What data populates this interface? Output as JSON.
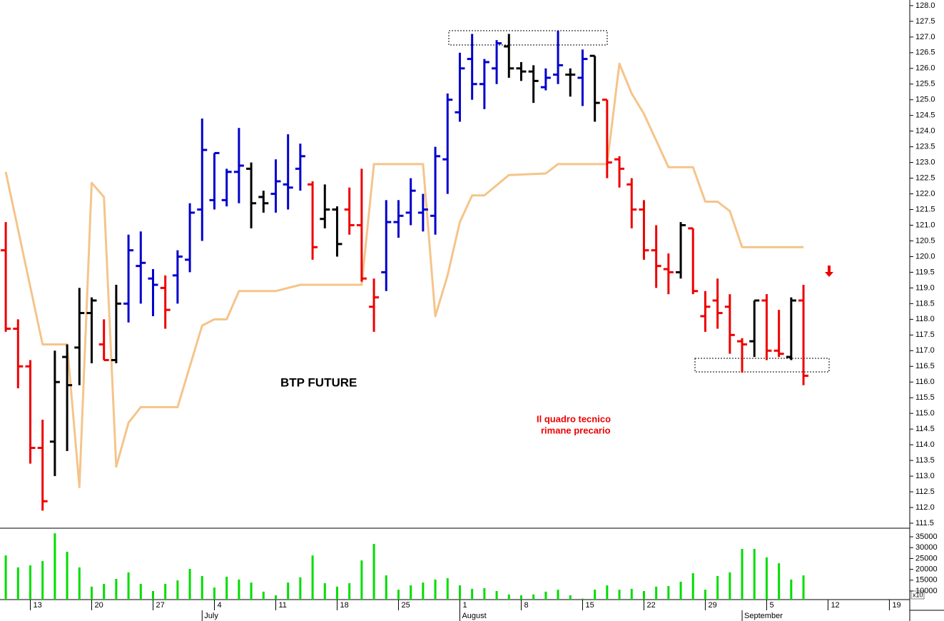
{
  "chart_data": [
    {
      "type": "ohlc",
      "title": "BTP FUTURE",
      "annotation": [
        "Il quadro tecnico",
        "rimane precario"
      ],
      "xlim": [
        -0.47,
        73.66
      ],
      "ylim": [
        111.34,
        128.18
      ],
      "yticks": [
        111.5,
        {
          "value": 112,
          "label": "112.0"
        },
        112.5,
        {
          "value": 113,
          "label": "113.0"
        },
        113.5,
        {
          "value": 114,
          "label": "114.0"
        },
        114.5,
        {
          "value": 115,
          "label": "115.0"
        },
        115.5,
        {
          "value": 116,
          "label": "116.0"
        },
        116.5,
        {
          "value": 117,
          "label": "117.0"
        },
        117.5,
        {
          "value": 118,
          "label": "118.0"
        },
        118.5,
        {
          "value": 119,
          "label": "119.0"
        },
        119.5,
        {
          "value": 120,
          "label": "120.0"
        },
        120.5,
        {
          "value": 121,
          "label": "121.0"
        },
        121.5,
        {
          "value": 122,
          "label": "122.0"
        },
        122.5,
        {
          "value": 123,
          "label": "123.0"
        },
        123.5,
        {
          "value": 124,
          "label": "124.0"
        },
        124.5,
        {
          "value": 125,
          "label": "125.0"
        },
        125.5,
        {
          "value": 126,
          "label": "126.0"
        },
        126.5,
        {
          "value": 127,
          "label": "127.0"
        },
        127.5,
        {
          "value": 128,
          "label": "128.0"
        }
      ],
      "x": [
        0,
        1,
        2,
        3,
        4,
        5,
        6,
        7,
        8,
        9,
        10,
        11,
        12,
        13,
        14,
        15,
        16,
        17,
        18,
        19,
        20,
        21,
        22,
        23,
        24,
        25,
        26,
        27,
        28,
        29,
        30,
        31,
        32,
        33,
        34,
        35,
        36,
        37,
        38,
        39,
        40,
        41,
        42,
        43,
        44,
        45,
        46,
        47,
        48,
        49,
        50,
        51,
        52,
        53,
        54,
        55,
        56,
        57,
        58,
        59,
        60,
        61,
        62,
        63,
        64,
        65
      ],
      "open": [
        120.2,
        117.7,
        116.5,
        113.9,
        114.1,
        116.8,
        117.1,
        118.2,
        117.2,
        116.7,
        118.5,
        119.7,
        119.3,
        119.0,
        119.4,
        119.9,
        121.5,
        121.8,
        121.8,
        122.7,
        122.8,
        121.9,
        122.0,
        122.3,
        122.8,
        122.3,
        121.2,
        121.5,
        121.5,
        121.0,
        118.4,
        119.5,
        121.1,
        121.4,
        121.4,
        121.3,
        123.1,
        124.6,
        126.3,
        125.5,
        126.0,
        126.7,
        126.0,
        125.9,
        125.4,
        125.8,
        125.8,
        125.7,
        126.4,
        125.0,
        123.1,
        122.3,
        121.5,
        120.2,
        119.6,
        119.5,
        120.9,
        118.1,
        118.6,
        118.4,
        117.3,
        117.3,
        118.6,
        117.0,
        116.8,
        118.6
      ],
      "high": [
        121.1,
        118.0,
        116.7,
        114.8,
        117.0,
        117.2,
        119.0,
        118.7,
        118.0,
        119.1,
        120.7,
        120.8,
        119.6,
        119.4,
        120.2,
        121.7,
        124.4,
        123.3,
        122.8,
        124.1,
        123.0,
        122.1,
        123.1,
        123.9,
        123.6,
        122.4,
        122.3,
        121.6,
        122.2,
        122.8,
        119.3,
        121.8,
        121.8,
        122.5,
        122.0,
        123.5,
        125.2,
        126.5,
        127.1,
        126.3,
        126.9,
        127.1,
        126.2,
        126.1,
        126.0,
        127.2,
        126.0,
        126.6,
        126.4,
        125.0,
        123.2,
        122.5,
        121.8,
        121.0,
        120.1,
        121.1,
        120.9,
        118.9,
        119.3,
        118.8,
        117.4,
        118.6,
        118.8,
        118.3,
        118.7,
        119.1
      ],
      "low": [
        117.6,
        115.8,
        113.4,
        111.9,
        113.0,
        113.8,
        115.9,
        116.6,
        116.7,
        116.6,
        117.9,
        118.5,
        118.1,
        117.7,
        118.5,
        119.5,
        120.5,
        121.5,
        121.6,
        121.7,
        120.9,
        121.4,
        121.4,
        121.5,
        122.1,
        119.9,
        120.9,
        120.0,
        120.7,
        119.2,
        117.6,
        118.9,
        120.6,
        121.0,
        120.8,
        120.7,
        122.0,
        124.3,
        125.0,
        124.7,
        125.5,
        125.7,
        125.6,
        124.9,
        125.3,
        125.5,
        125.1,
        124.8,
        124.3,
        122.5,
        122.2,
        120.9,
        119.9,
        119.0,
        118.8,
        119.3,
        118.8,
        117.6,
        117.7,
        116.9,
        116.3,
        116.8,
        116.7,
        116.8,
        116.7,
        115.9
      ],
      "close": [
        117.7,
        116.5,
        113.9,
        112.2,
        116.0,
        115.9,
        118.2,
        118.6,
        116.7,
        118.5,
        120.2,
        119.8,
        119.1,
        118.3,
        120.0,
        121.4,
        123.4,
        123.3,
        122.7,
        122.9,
        121.7,
        121.7,
        122.4,
        122.2,
        123.2,
        120.3,
        121.5,
        120.4,
        121.0,
        119.3,
        118.7,
        121.1,
        121.3,
        122.1,
        121.5,
        123.2,
        125.0,
        126.0,
        125.5,
        126.2,
        126.8,
        126.0,
        125.9,
        125.6,
        125.7,
        126.1,
        125.8,
        126.3,
        124.9,
        123.0,
        122.8,
        121.5,
        120.2,
        119.7,
        119.5,
        121.0,
        118.9,
        118.4,
        118.2,
        117.5,
        117.2,
        118.6,
        117.0,
        116.9,
        118.6,
        116.2
      ],
      "colors": [
        "#ee0000",
        "#ee0000",
        "#ee0000",
        "#ee0000",
        "#000000",
        "#000000",
        "#000000",
        "#000000",
        "#ee0000",
        "#000000",
        "#0000cc",
        "#0000cc",
        "#0000cc",
        "#ee0000",
        "#0000cc",
        "#0000cc",
        "#0000cc",
        "#0000cc",
        "#0000cc",
        "#0000cc",
        "#000000",
        "#000000",
        "#0000cc",
        "#0000cc",
        "#0000cc",
        "#ee0000",
        "#000000",
        "#000000",
        "#ee0000",
        "#ee0000",
        "#ee0000",
        "#0000cc",
        "#0000cc",
        "#0000cc",
        "#0000cc",
        "#0000cc",
        "#0000cc",
        "#0000cc",
        "#0000cc",
        "#0000cc",
        "#0000cc",
        "#000000",
        "#000000",
        "#000000",
        "#0000cc",
        "#0000cc",
        "#000000",
        "#0000cc",
        "#000000",
        "#ee0000",
        "#ee0000",
        "#ee0000",
        "#ee0000",
        "#ee0000",
        "#ee0000",
        "#000000",
        "#ee0000",
        "#ee0000",
        "#ee0000",
        "#ee0000",
        "#ee0000",
        "#000000",
        "#ee0000",
        "#ee0000",
        "#000000",
        "#ee0000"
      ],
      "line": {
        "color": "#f5c48a",
        "x": [
          0,
          3,
          5,
          6,
          7,
          8,
          9,
          10,
          11,
          14,
          16,
          17,
          18,
          19,
          22,
          24,
          29,
          30,
          34,
          35,
          36,
          37,
          38,
          39,
          41,
          44,
          45,
          49,
          50,
          51,
          52,
          54,
          56,
          57,
          58,
          59,
          60,
          65
        ],
        "values": [
          122.7,
          117.2,
          117.2,
          112.65,
          122.35,
          121.9,
          113.3,
          114.7,
          115.2,
          115.2,
          117.8,
          118.0,
          118.0,
          118.9,
          118.9,
          119.1,
          119.1,
          122.95,
          122.95,
          118.1,
          119.4,
          121.1,
          121.95,
          121.95,
          122.6,
          122.65,
          122.95,
          122.95,
          126.15,
          125.2,
          124.55,
          122.85,
          122.85,
          121.75,
          121.75,
          121.45,
          120.3,
          120.3
        ]
      }
    },
    {
      "type": "bar",
      "color": "#00dd00",
      "unit_label": "x10",
      "xlim": [
        -0.47,
        73.66
      ],
      "ylim": [
        6050,
        38620
      ],
      "yticks": [
        10000,
        15000,
        20000,
        25000,
        30000,
        35000
      ],
      "x": [
        0,
        1,
        2,
        3,
        4,
        5,
        6,
        7,
        8,
        9,
        10,
        11,
        12,
        13,
        14,
        15,
        16,
        17,
        18,
        19,
        20,
        21,
        22,
        23,
        24,
        25,
        26,
        27,
        28,
        29,
        30,
        31,
        32,
        33,
        34,
        35,
        36,
        37,
        38,
        39,
        40,
        41,
        42,
        43,
        44,
        45,
        46,
        47,
        48,
        49,
        50,
        51,
        52,
        53,
        54,
        55,
        56,
        57,
        58,
        59,
        60,
        61,
        62,
        63,
        64,
        65
      ],
      "values": [
        26400,
        20900,
        21800,
        23800,
        36600,
        28100,
        20900,
        12000,
        13300,
        15600,
        18600,
        13300,
        10000,
        13300,
        14900,
        20200,
        16900,
        11600,
        16600,
        15300,
        13900,
        9700,
        8000,
        13900,
        16300,
        26400,
        13600,
        12000,
        13600,
        24100,
        31700,
        17200,
        10600,
        12600,
        13900,
        15300,
        15900,
        12600,
        11000,
        11300,
        10000,
        8400,
        8000,
        8400,
        9700,
        10600,
        8000,
        6500,
        10600,
        12600,
        10600,
        11000,
        10000,
        12000,
        12300,
        14300,
        18200,
        10600,
        16900,
        18600,
        29400,
        29400,
        25500,
        22800,
        15300,
        17200
      ],
      "xticks": [
        {
          "value": 2,
          "label": "13"
        },
        {
          "value": 7,
          "label": "20"
        },
        {
          "value": 12,
          "label": "27"
        },
        {
          "value": 17,
          "label": "4"
        },
        {
          "value": 22,
          "label": "11"
        },
        {
          "value": 27,
          "label": "18"
        },
        {
          "value": 32,
          "label": "25"
        },
        {
          "value": 37,
          "label": "1"
        },
        {
          "value": 42,
          "label": "8"
        },
        {
          "value": 47,
          "label": "15"
        },
        {
          "value": 52,
          "label": "22"
        },
        {
          "value": 57,
          "label": "29"
        },
        {
          "value": 62,
          "label": "5"
        },
        {
          "value": 67,
          "label": "12"
        },
        {
          "value": 72,
          "label": "19"
        }
      ],
      "month_ticks": [
        {
          "value": 16,
          "label": "July"
        },
        {
          "value": 37,
          "label": "August"
        },
        {
          "value": 60,
          "label": "September"
        }
      ]
    }
  ]
}
